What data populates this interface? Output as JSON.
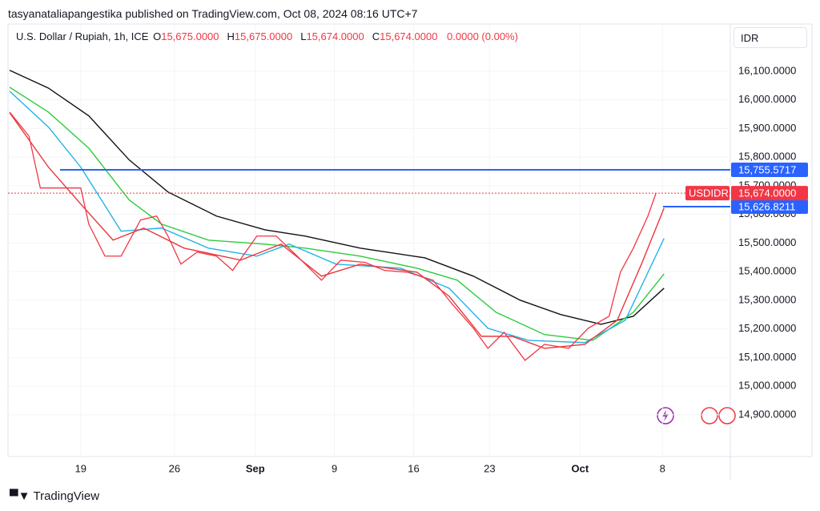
{
  "header": {
    "byline": "tasyanataliapangestika published on TradingView.com, Oct 08, 2024 08:16 UTC+7"
  },
  "chart_data": {
    "type": "line",
    "title": "U.S. Dollar / Rupiah, 1h, ICE",
    "ohlc": {
      "labels": [
        "O",
        "H",
        "L",
        "C"
      ],
      "values": [
        15675,
        15675,
        15674,
        15674
      ],
      "value_labels": [
        "15,675.0000",
        "15,675.0000",
        "15,674.0000",
        "15,674.0000"
      ]
    },
    "change": "0.0000 (0.00%)",
    "currency": "IDR",
    "xlim": [
      -4.5,
      40.2
    ],
    "xticks": [
      {
        "value": 0,
        "label": "19"
      },
      {
        "value": 5.8,
        "label": "26"
      },
      {
        "value": 10.8,
        "label": "Sep"
      },
      {
        "value": 15.7,
        "label": "9"
      },
      {
        "value": 20.6,
        "label": "16"
      },
      {
        "value": 25.3,
        "label": "23"
      },
      {
        "value": 30.9,
        "label": "Oct"
      },
      {
        "value": 36,
        "label": "8"
      }
    ],
    "ylim": [
      14852,
      16259
    ],
    "yticks": [
      {
        "value": 14900,
        "label": "14,900.0000"
      },
      {
        "value": 15000,
        "label": "15,000.0000"
      },
      {
        "value": 15100,
        "label": "15,100.0000"
      },
      {
        "value": 15200,
        "label": "15,200.0000"
      },
      {
        "value": 15300,
        "label": "15,300.0000"
      },
      {
        "value": 15400,
        "label": "15,400.0000"
      },
      {
        "value": 15500,
        "label": "15,500.0000"
      },
      {
        "value": 15600,
        "label": "15,600.0000"
      },
      {
        "value": 15700,
        "label": "15,700.0000"
      },
      {
        "value": 15800,
        "label": "15,800.0000"
      },
      {
        "value": 15900,
        "label": "15,900.0000"
      },
      {
        "value": 16000,
        "label": "16,000.0000"
      },
      {
        "value": 16100,
        "label": "16,100.0000"
      }
    ],
    "series": [
      {
        "name": "USDIDR",
        "color": "#f23645",
        "width": 1.3,
        "x": [
          -4.4,
          -3.2,
          -2.5,
          -1.2,
          0,
          0.5,
          1.5,
          2.5,
          3.7,
          4.7,
          5.4,
          6.2,
          7.2,
          8.4,
          9.4,
          10.9,
          12.1,
          13.4,
          14.9,
          16.1,
          17.6,
          18.8,
          20.2,
          21.8,
          23,
          24.3,
          25.2,
          26.2,
          27.5,
          28.7,
          30.2,
          31.4,
          32.7,
          33.4,
          34.2,
          35.1,
          35.6
        ],
        "values": [
          15957,
          15873,
          15692,
          15692,
          15692,
          15566,
          15454,
          15454,
          15580,
          15594,
          15524,
          15426,
          15468,
          15454,
          15404,
          15524,
          15524,
          15454,
          15370,
          15440,
          15432,
          15404,
          15398,
          15370,
          15286,
          15202,
          15132,
          15188,
          15090,
          15146,
          15132,
          15202,
          15244,
          15398,
          15482,
          15594,
          15674
        ]
      },
      {
        "color": "#e8383d",
        "width": 1.4,
        "x": [
          -4.4,
          -2,
          0,
          2,
          3.9,
          6.4,
          9.9,
          12.4,
          14.9,
          17.3,
          20.8,
          22.8,
          24.8,
          26.7,
          28.7,
          31.2,
          33.2,
          34.7,
          36.1
        ],
        "values": [
          15955,
          15765,
          15636,
          15510,
          15552,
          15482,
          15440,
          15496,
          15384,
          15426,
          15398,
          15314,
          15174,
          15174,
          15132,
          15146,
          15230,
          15426,
          15622
        ]
      },
      {
        "color": "#22b3e6",
        "width": 1.4,
        "x": [
          -4.4,
          -2,
          0,
          2.5,
          5,
          7.9,
          10.9,
          12.9,
          15.8,
          19.8,
          22.8,
          25.2,
          27.7,
          31.2,
          33.7,
          36.1
        ],
        "values": [
          16030,
          15905,
          15765,
          15541,
          15552,
          15482,
          15454,
          15496,
          15426,
          15412,
          15342,
          15202,
          15160,
          15152,
          15230,
          15516
        ]
      },
      {
        "color": "#2ecc40",
        "width": 1.4,
        "x": [
          -4.4,
          -2,
          0.5,
          3,
          5,
          7.9,
          11.4,
          13.9,
          17.3,
          20.8,
          23.3,
          25.7,
          28.7,
          31.7,
          34.2,
          36.1
        ],
        "values": [
          16044,
          15957,
          15831,
          15650,
          15566,
          15510,
          15496,
          15482,
          15454,
          15412,
          15370,
          15258,
          15180,
          15160,
          15258,
          15392
        ]
      },
      {
        "color": "#111111",
        "width": 1.4,
        "x": [
          -4.4,
          -2,
          0.5,
          3,
          5.4,
          8.4,
          11.4,
          13.9,
          17.3,
          21.3,
          24.3,
          27.2,
          29.7,
          32.2,
          34.2,
          36.1
        ],
        "values": [
          16103,
          16041,
          15944,
          15790,
          15678,
          15594,
          15546,
          15524,
          15482,
          15448,
          15384,
          15300,
          15250,
          15216,
          15244,
          15342
        ]
      }
    ],
    "levels": [
      {
        "value": 15755.5717,
        "label": "15,755.5717",
        "color": "#2962ff"
      },
      {
        "value": 15626.8211,
        "label": "15,626.8211",
        "color": "#2962ff"
      }
    ],
    "last_price": {
      "value": 15674,
      "label": "15,674.0000",
      "color": "#f23645"
    }
  },
  "footer": {
    "brand": "TradingView"
  }
}
